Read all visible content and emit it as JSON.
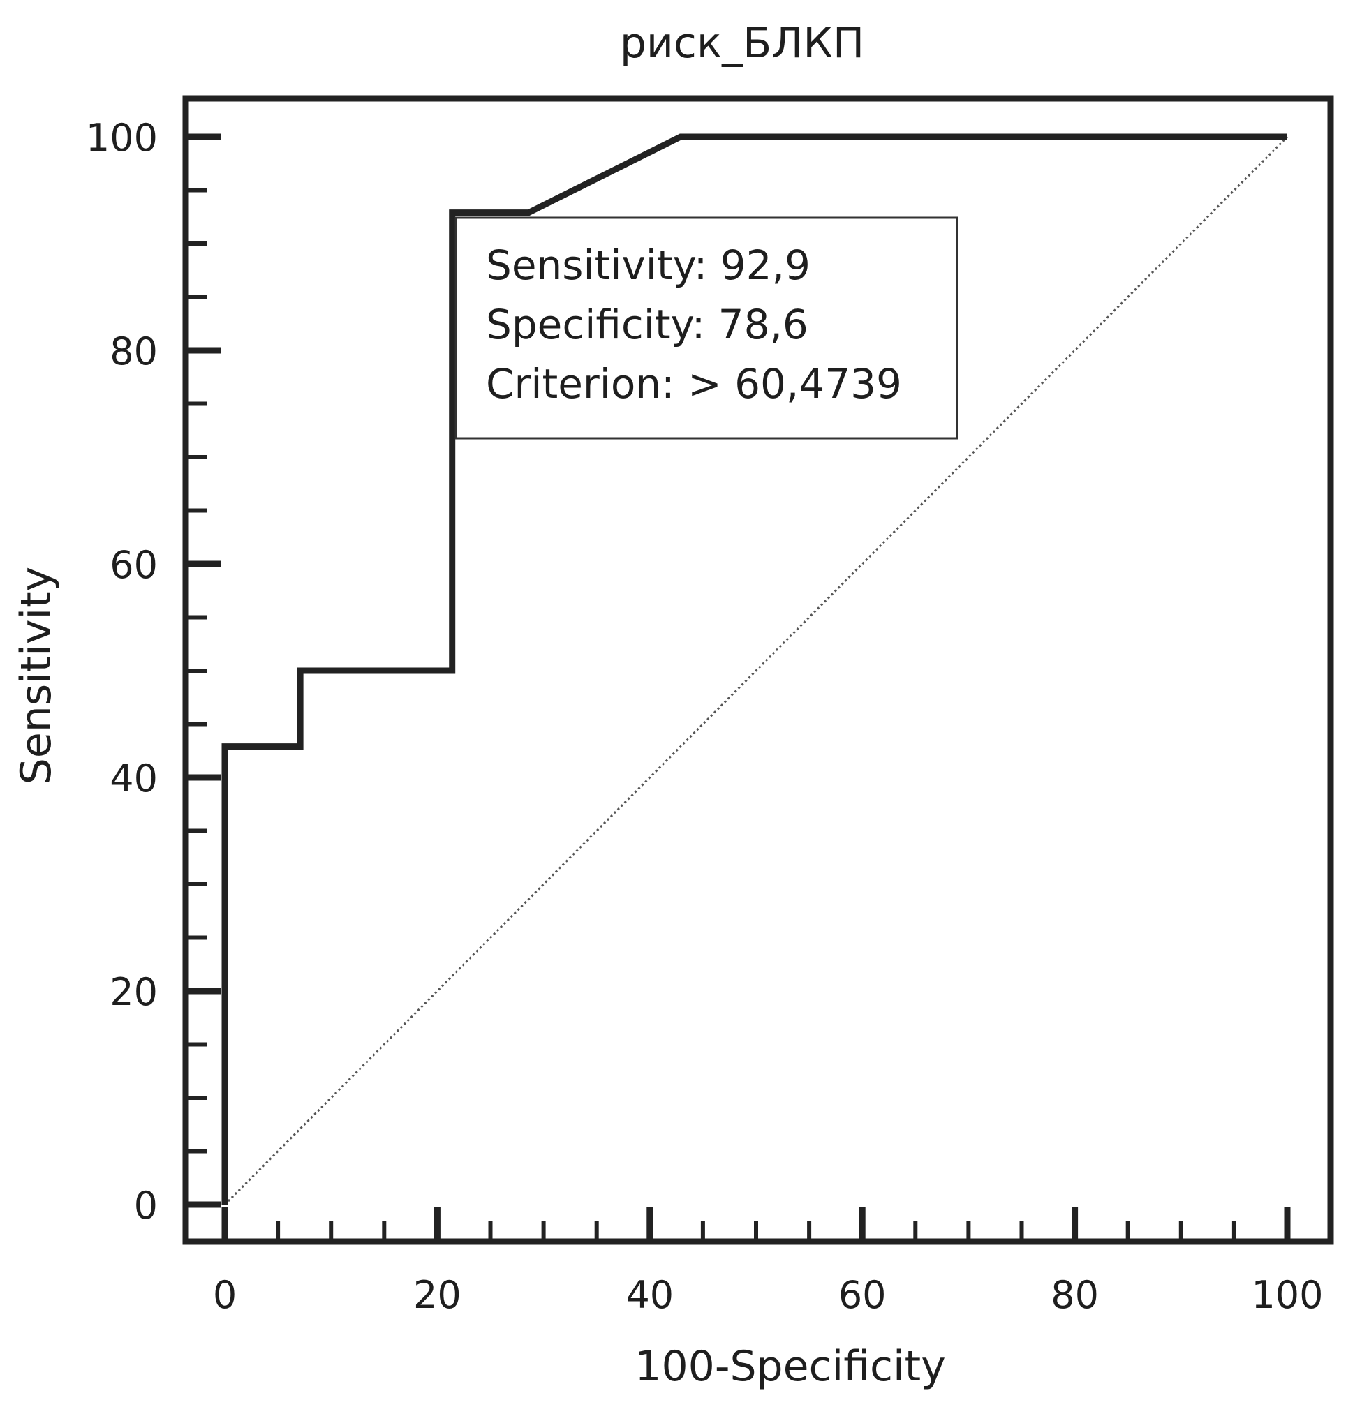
{
  "chart_data": {
    "type": "line",
    "title": "риск_БЛКП",
    "xlabel": "100-Specificity",
    "ylabel": "Sensitivity",
    "xlim": [
      0,
      100
    ],
    "ylim": [
      0,
      100
    ],
    "x_ticks": [
      "0",
      "20",
      "40",
      "60",
      "80",
      "100"
    ],
    "y_ticks": [
      "0",
      "20",
      "40",
      "60",
      "80",
      "100"
    ],
    "grid": false,
    "series": [
      {
        "style": "solid",
        "x": [
          0,
          0,
          7.1,
          7.1,
          21.4,
          21.4,
          28.6,
          42.9,
          100
        ],
        "y": [
          0,
          42.9,
          42.9,
          50,
          50,
          92.9,
          92.9,
          100,
          100
        ]
      },
      {
        "style": "dotted",
        "x": [
          0,
          100
        ],
        "y": [
          0,
          100
        ]
      }
    ],
    "annotation": {
      "lines": [
        "Sensitivity: 92,9",
        "Specificity: 78,6",
        "Criterion: > 60,4739"
      ]
    }
  }
}
